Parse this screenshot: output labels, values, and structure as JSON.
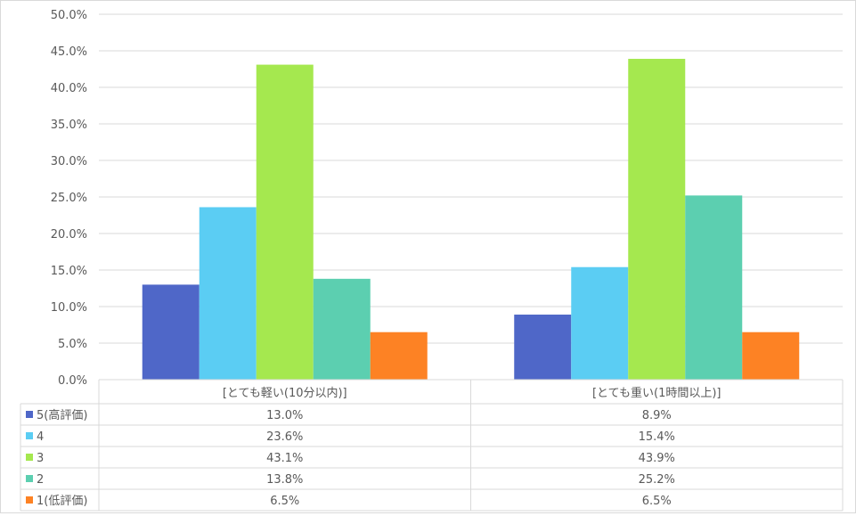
{
  "chart_data": {
    "type": "bar",
    "categories": [
      "[とても軽い(10分以内)]",
      "[とても重い(1時間以上)]"
    ],
    "series": [
      {
        "name": "5(高評価)",
        "color": "#4f67c8",
        "values": [
          13.0,
          8.9
        ],
        "labels": [
          "13.0%",
          "8.9%"
        ]
      },
      {
        "name": "4",
        "color": "#5bcdf3",
        "values": [
          23.6,
          15.4
        ],
        "labels": [
          "23.6%",
          "15.4%"
        ]
      },
      {
        "name": "3",
        "color": "#a5e84f",
        "values": [
          43.1,
          43.9
        ],
        "labels": [
          "43.1%",
          "43.9%"
        ]
      },
      {
        "name": "2",
        "color": "#5ccfb0",
        "values": [
          13.8,
          25.2
        ],
        "labels": [
          "13.8%",
          "25.2%"
        ]
      },
      {
        "name": "1(低評価)",
        "color": "#fd8224",
        "values": [
          6.5,
          6.5
        ],
        "labels": [
          "6.5%",
          "6.5%"
        ]
      }
    ],
    "yticks": [
      "0.0%",
      "5.0%",
      "10.0%",
      "15.0%",
      "20.0%",
      "25.0%",
      "30.0%",
      "35.0%",
      "40.0%",
      "45.0%",
      "50.0%"
    ],
    "ylim": [
      0,
      50
    ],
    "grid": true,
    "legend": "data-table"
  }
}
